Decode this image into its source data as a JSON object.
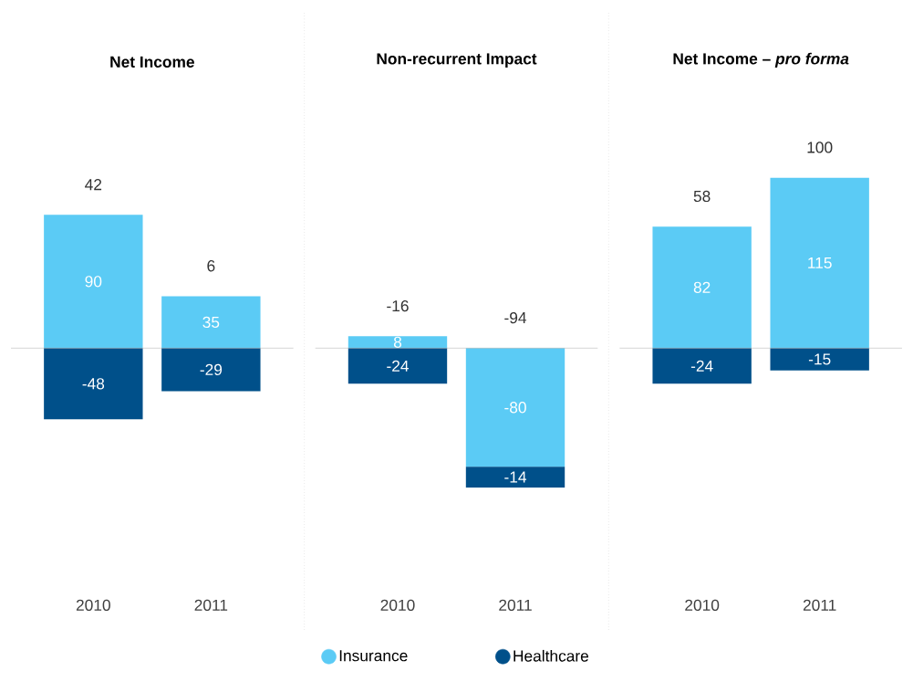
{
  "chart_data": [
    {
      "type": "bar",
      "title": "Net Income",
      "categories": [
        "2010",
        "2011"
      ],
      "stacked": true,
      "data_labels": true,
      "totals": [
        "42",
        "6"
      ],
      "series": [
        {
          "color": "#5bcbf5",
          "values": [
            90,
            35
          ]
        },
        {
          "color": "#00508a",
          "values": [
            -48,
            -29
          ]
        }
      ]
    },
    {
      "type": "bar",
      "title": "Non-recurrent Impact",
      "categories": [
        "2010",
        "2011"
      ],
      "stacked": true,
      "data_labels": true,
      "totals": [
        "-16",
        "-94"
      ],
      "legend": "bottom",
      "series": [
        {
          "name": "Insurance",
          "color": "#5bcbf5",
          "values": [
            8,
            -80
          ]
        },
        {
          "name": "Healthcare",
          "color": "#00508a",
          "values": [
            -24,
            -14
          ]
        }
      ]
    },
    {
      "type": "bar",
      "title": "Net Income – *pro forma*",
      "categories": [
        "2010",
        "2011"
      ],
      "stacked": true,
      "data_labels": true,
      "totals": [
        "58",
        "100"
      ],
      "series": [
        {
          "color": "#5bcbf5",
          "values": [
            82,
            115
          ]
        },
        {
          "color": "#00508a",
          "values": [
            -24,
            -15
          ]
        }
      ]
    }
  ]
}
